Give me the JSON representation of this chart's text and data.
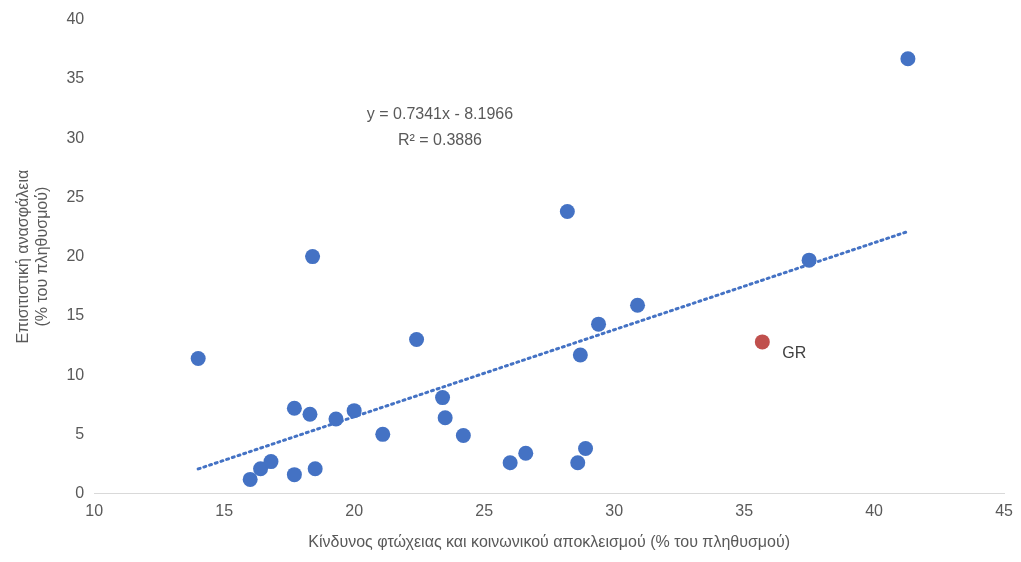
{
  "chart_data": {
    "type": "scatter",
    "xlabel": "Κίνδυνος φτώχειας και κοινωνικού αποκλεισμού (% του πληθυσμού)",
    "ylabel": "Επισιτιστική ανασφάλεια\n(% του πληθυσμού)",
    "xlim": [
      10,
      45
    ],
    "xticks": [
      10,
      15,
      20,
      25,
      30,
      35,
      40,
      45
    ],
    "ylim": [
      0,
      40
    ],
    "yticks": [
      0,
      5,
      10,
      15,
      20,
      25,
      30,
      35,
      40
    ],
    "grid": false,
    "legend": false,
    "marker": "circle",
    "annotations": [
      "y = 0.7341x - 8.1966",
      "R² = 0.3886"
    ],
    "series": [
      {
        "color": "#4472c4",
        "x": [
          14.0,
          16.0,
          16.4,
          16.8,
          17.7,
          17.7,
          18.3,
          18.4,
          18.5,
          19.3,
          20.0,
          21.1,
          22.4,
          23.4,
          23.5,
          24.2,
          26.0,
          26.6,
          28.2,
          28.6,
          28.7,
          28.9,
          29.4,
          30.9,
          37.5,
          41.3
        ],
        "values": [
          11.4,
          1.2,
          2.1,
          2.7,
          7.2,
          1.6,
          6.7,
          20.0,
          2.1,
          6.3,
          7.0,
          5.0,
          13.0,
          8.1,
          6.4,
          4.9,
          2.6,
          3.4,
          23.8,
          2.6,
          11.7,
          3.8,
          14.3,
          15.9,
          19.7,
          36.7
        ]
      },
      {
        "name": "GR",
        "color": "#c0504d",
        "x": [
          35.7
        ],
        "values": [
          12.8
        ]
      },
      {
        "type": "line",
        "color": "#4472c4",
        "line_style": "dotted",
        "marker": "none",
        "x": [
          14.0,
          41.3
        ],
        "values": [
          2.08,
          22.12
        ]
      }
    ]
  }
}
